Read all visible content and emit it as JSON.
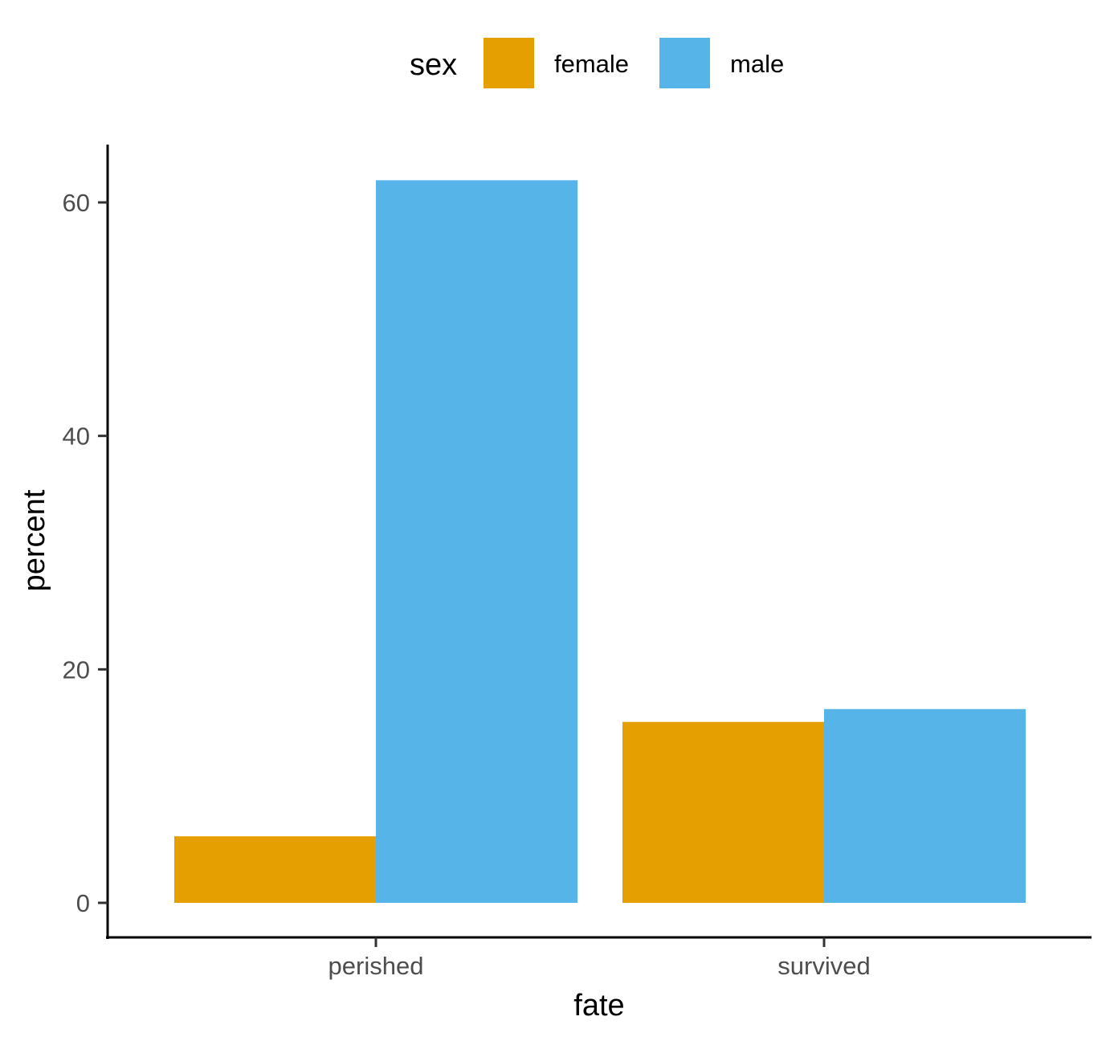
{
  "chart_data": {
    "type": "bar",
    "title": "",
    "xlabel": "fate",
    "ylabel": "percent",
    "categories": [
      "perished",
      "survived"
    ],
    "series": [
      {
        "name": "female",
        "color": "#E69F00",
        "values": [
          5.7,
          15.5
        ]
      },
      {
        "name": "male",
        "color": "#56B4E9",
        "values": [
          61.9,
          16.6
        ]
      }
    ],
    "ylim": [
      -3,
      65
    ],
    "yticks": [
      0,
      20,
      40,
      60
    ],
    "ytick_labels": [
      "0",
      "20",
      "40",
      "60"
    ],
    "legend": {
      "title": "sex",
      "position": "top",
      "items": [
        "female",
        "male"
      ]
    },
    "grid": false
  }
}
